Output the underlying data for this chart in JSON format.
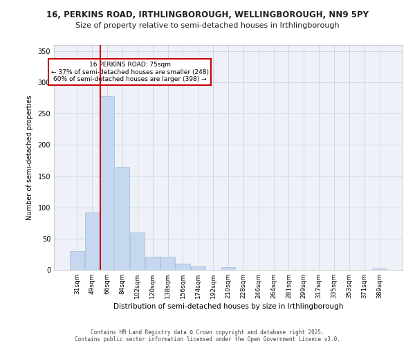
{
  "title1": "16, PERKINS ROAD, IRTHLINGBOROUGH, WELLINGBOROUGH, NN9 5PY",
  "title2": "Size of property relative to semi-detached houses in Irthlingborough",
  "xlabel": "Distribution of semi-detached houses by size in Irthlingborough",
  "ylabel": "Number of semi-detached properties",
  "categories": [
    "31sqm",
    "49sqm",
    "66sqm",
    "84sqm",
    "102sqm",
    "120sqm",
    "138sqm",
    "156sqm",
    "174sqm",
    "192sqm",
    "210sqm",
    "228sqm",
    "246sqm",
    "264sqm",
    "281sqm",
    "299sqm",
    "317sqm",
    "335sqm",
    "353sqm",
    "371sqm",
    "389sqm"
  ],
  "values": [
    30,
    92,
    278,
    165,
    60,
    21,
    21,
    10,
    5,
    0,
    4,
    0,
    0,
    0,
    0,
    0,
    0,
    0,
    0,
    0,
    2
  ],
  "bar_color": "#c5d8f0",
  "bar_edge_color": "#a0b8d8",
  "property_line_x": 2,
  "property_size": "75sqm",
  "pct_smaller": 37,
  "count_smaller": 248,
  "pct_larger": 60,
  "count_larger": 398,
  "annotation_box_color": "#cc0000",
  "vline_color": "#cc0000",
  "ylim": [
    0,
    360
  ],
  "yticks": [
    0,
    50,
    100,
    150,
    200,
    250,
    300,
    350
  ],
  "grid_color": "#d0d8e8",
  "background_color": "#eef2f8",
  "footer_line1": "Contains HM Land Registry data © Crown copyright and database right 2025.",
  "footer_line2": "Contains public sector information licensed under the Open Government Licence v3.0."
}
